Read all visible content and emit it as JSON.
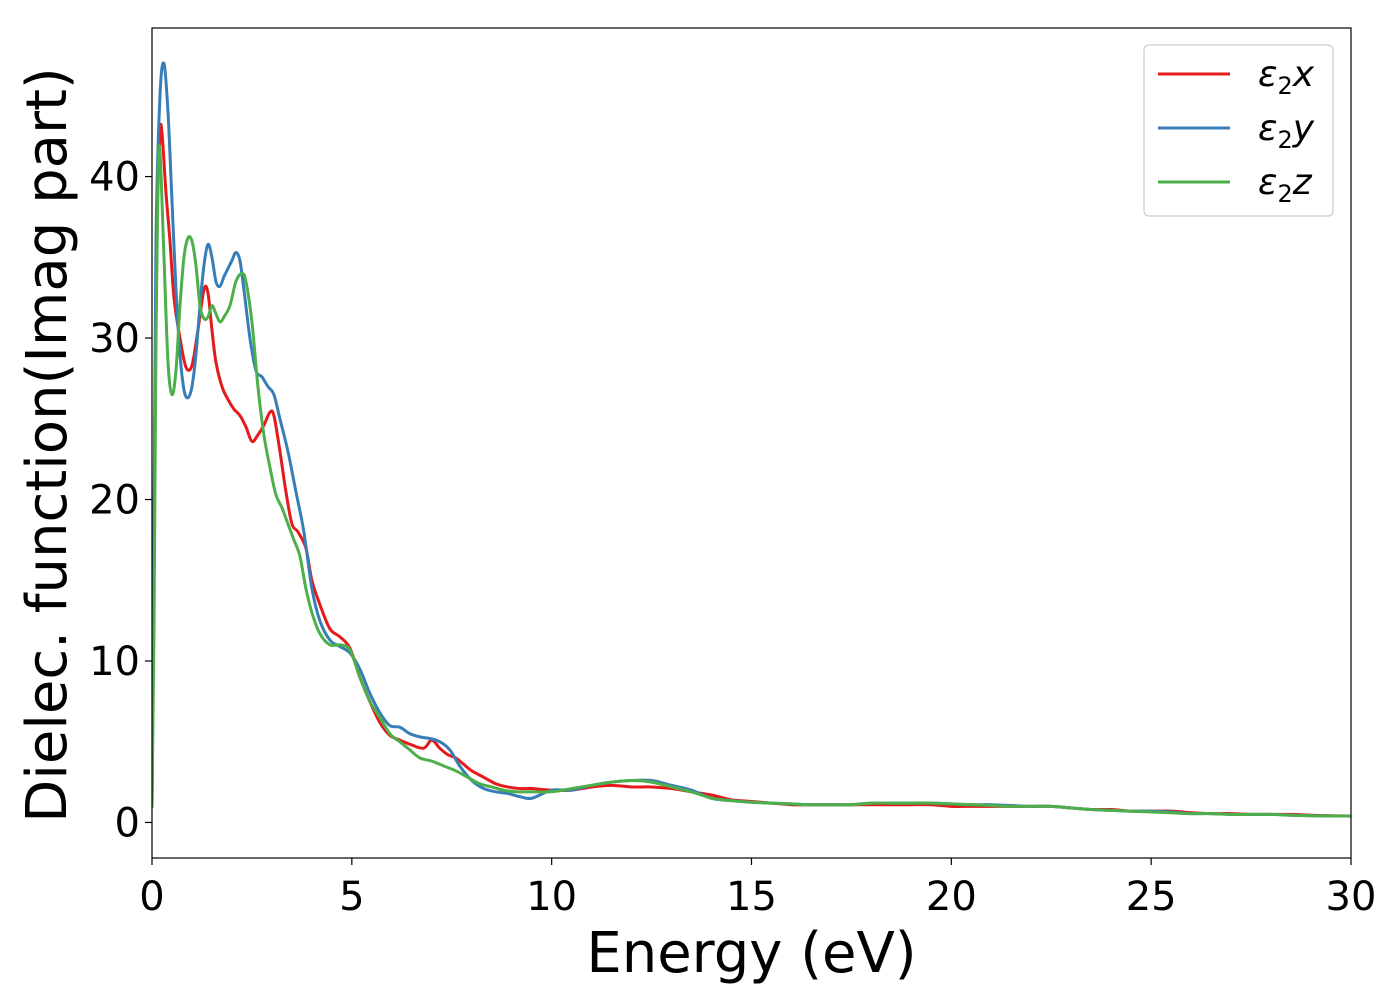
{
  "chart_data": {
    "type": "line",
    "title": "",
    "xlabel": "Energy (eV)",
    "ylabel": "Dielec. function(Imag part)",
    "xlim": [
      0,
      30
    ],
    "ylim": [
      -2.2,
      49.2
    ],
    "xticks": [
      0,
      5,
      10,
      15,
      20,
      25,
      30
    ],
    "yticks": [
      0,
      10,
      20,
      30,
      40
    ],
    "grid": false,
    "legend_position": "top-right",
    "series": [
      {
        "name": "ε2x",
        "symbol": "ε",
        "subscript": "2",
        "component": "x",
        "color": "#e41a1c",
        "x": [
          0,
          0.05,
          0.12,
          0.2,
          0.25,
          0.35,
          0.45,
          0.55,
          0.7,
          0.85,
          1.0,
          1.15,
          1.3,
          1.4,
          1.5,
          1.6,
          1.75,
          1.9,
          2.05,
          2.2,
          2.35,
          2.5,
          2.65,
          2.8,
          2.95,
          3.05,
          3.2,
          3.35,
          3.5,
          3.65,
          3.85,
          4.0,
          4.2,
          4.45,
          4.7,
          4.95,
          5.2,
          5.45,
          5.7,
          5.95,
          6.2,
          6.5,
          6.8,
          7.0,
          7.2,
          7.4,
          7.6,
          7.8,
          8.0,
          8.3,
          8.6,
          8.9,
          9.2,
          9.5,
          10.0,
          10.5,
          11.0,
          11.5,
          12.0,
          12.5,
          13.0,
          13.5,
          14.0,
          14.5,
          15.0,
          15.5,
          16.0,
          16.5,
          17.0,
          17.5,
          18.0,
          18.5,
          19.0,
          19.5,
          20.0,
          20.5,
          21.0,
          21.5,
          22.0,
          22.5,
          23.0,
          23.5,
          24.0,
          24.5,
          25.0,
          25.5,
          26.0,
          26.5,
          27.0,
          27.5,
          28.0,
          28.5,
          29.0,
          29.5,
          30.0
        ],
        "values": [
          1.0,
          18.0,
          36.0,
          42.5,
          42.7,
          39.0,
          36.0,
          32.5,
          30.0,
          28.2,
          28.3,
          30.5,
          33.0,
          32.8,
          30.5,
          28.5,
          27.0,
          26.2,
          25.6,
          25.2,
          24.5,
          23.6,
          24.0,
          24.6,
          25.4,
          25.2,
          23.0,
          20.5,
          18.5,
          18.0,
          17.0,
          15.0,
          13.5,
          12.0,
          11.5,
          10.8,
          9.0,
          7.5,
          6.2,
          5.4,
          5.1,
          4.8,
          4.6,
          5.1,
          4.6,
          4.2,
          4.0,
          3.6,
          3.2,
          2.8,
          2.4,
          2.2,
          2.1,
          2.1,
          2.0,
          2.0,
          2.2,
          2.3,
          2.2,
          2.2,
          2.1,
          1.9,
          1.7,
          1.4,
          1.3,
          1.2,
          1.1,
          1.1,
          1.1,
          1.1,
          1.1,
          1.1,
          1.1,
          1.1,
          1.0,
          1.0,
          1.0,
          1.0,
          1.0,
          1.0,
          0.9,
          0.8,
          0.8,
          0.7,
          0.7,
          0.7,
          0.6,
          0.55,
          0.55,
          0.5,
          0.5,
          0.5,
          0.45,
          0.42,
          0.4
        ]
      },
      {
        "name": "ε2y",
        "symbol": "ε",
        "subscript": "2",
        "component": "y",
        "color": "#377eb8",
        "x": [
          0,
          0.05,
          0.1,
          0.2,
          0.3,
          0.4,
          0.5,
          0.6,
          0.7,
          0.8,
          0.9,
          1.0,
          1.1,
          1.2,
          1.3,
          1.4,
          1.5,
          1.6,
          1.7,
          1.8,
          1.9,
          2.0,
          2.1,
          2.2,
          2.3,
          2.45,
          2.6,
          2.75,
          2.9,
          3.05,
          3.2,
          3.4,
          3.6,
          3.8,
          4.0,
          4.2,
          4.45,
          4.7,
          4.95,
          5.2,
          5.45,
          5.7,
          5.95,
          6.2,
          6.45,
          6.7,
          6.95,
          7.2,
          7.45,
          7.7,
          8.0,
          8.3,
          8.6,
          8.9,
          9.2,
          9.5,
          10.0,
          10.5,
          11.0,
          11.5,
          12.0,
          12.5,
          13.0,
          13.5,
          14.0,
          14.5,
          15.0,
          15.5,
          16.0,
          16.5,
          17.0,
          17.5,
          18.0,
          18.5,
          19.0,
          19.5,
          20.0,
          20.5,
          21.0,
          21.5,
          22.0,
          22.5,
          23.0,
          23.5,
          24.0,
          24.5,
          25.0,
          25.5,
          26.0,
          26.5,
          27.0,
          27.5,
          28.0,
          28.5,
          29.0,
          29.5,
          30.0
        ],
        "values": [
          1.0,
          18.0,
          36.0,
          45.0,
          47.0,
          44.0,
          38.5,
          33.0,
          29.0,
          26.8,
          26.3,
          27.0,
          29.0,
          32.0,
          34.5,
          35.8,
          35.0,
          33.5,
          33.2,
          33.8,
          34.3,
          34.8,
          35.3,
          34.8,
          33.0,
          30.0,
          28.0,
          27.6,
          27.0,
          26.5,
          25.0,
          23.0,
          20.5,
          18.0,
          14.5,
          12.5,
          11.3,
          10.9,
          10.5,
          9.5,
          8.0,
          6.8,
          6.0,
          5.9,
          5.5,
          5.3,
          5.2,
          5.0,
          4.5,
          3.5,
          2.6,
          2.1,
          1.9,
          1.8,
          1.6,
          1.5,
          2.0,
          2.0,
          2.3,
          2.5,
          2.6,
          2.6,
          2.3,
          2.0,
          1.5,
          1.35,
          1.25,
          1.2,
          1.15,
          1.1,
          1.1,
          1.1,
          1.2,
          1.2,
          1.2,
          1.2,
          1.15,
          1.1,
          1.1,
          1.05,
          1.0,
          1.0,
          0.9,
          0.8,
          0.75,
          0.7,
          0.7,
          0.65,
          0.55,
          0.55,
          0.5,
          0.5,
          0.5,
          0.45,
          0.42,
          0.4,
          0.4
        ]
      },
      {
        "name": "ε2z",
        "symbol": "ε",
        "subscript": "2",
        "component": "z",
        "color": "#4daf4a",
        "x": [
          0,
          0.05,
          0.1,
          0.15,
          0.2,
          0.3,
          0.4,
          0.5,
          0.6,
          0.7,
          0.8,
          0.9,
          1.0,
          1.1,
          1.2,
          1.3,
          1.4,
          1.5,
          1.6,
          1.7,
          1.8,
          1.95,
          2.1,
          2.25,
          2.35,
          2.5,
          2.65,
          2.8,
          2.95,
          3.1,
          3.25,
          3.4,
          3.55,
          3.7,
          3.85,
          4.0,
          4.2,
          4.45,
          4.7,
          4.95,
          5.2,
          5.45,
          5.7,
          5.95,
          6.2,
          6.45,
          6.7,
          7.0,
          7.3,
          7.6,
          7.9,
          8.2,
          8.5,
          8.8,
          9.1,
          9.5,
          10.0,
          10.5,
          11.0,
          11.5,
          12.0,
          12.5,
          13.0,
          13.5,
          14.0,
          14.5,
          15.0,
          15.5,
          16.0,
          16.5,
          17.0,
          17.5,
          18.0,
          18.5,
          19.0,
          19.5,
          20.0,
          20.5,
          21.0,
          21.5,
          22.0,
          22.5,
          23.0,
          23.5,
          24.0,
          24.5,
          25.0,
          25.5,
          26.0,
          26.5,
          27.0,
          27.5,
          28.0,
          28.5,
          29.0,
          29.5,
          30.0
        ],
        "values": [
          1.0,
          12.0,
          30.0,
          40.0,
          41.5,
          35.0,
          28.5,
          26.5,
          28.0,
          32.0,
          35.0,
          36.2,
          36.0,
          34.5,
          32.0,
          31.2,
          31.3,
          32.0,
          31.5,
          31.0,
          31.3,
          32.0,
          33.5,
          34.0,
          33.5,
          31.0,
          27.0,
          24.0,
          22.0,
          20.3,
          19.5,
          18.5,
          17.5,
          16.5,
          14.5,
          13.0,
          11.7,
          11.0,
          11.0,
          10.7,
          9.0,
          7.5,
          6.5,
          5.5,
          5.0,
          4.5,
          4.0,
          3.8,
          3.5,
          3.2,
          2.8,
          2.4,
          2.2,
          2.0,
          1.9,
          1.9,
          1.9,
          2.1,
          2.3,
          2.5,
          2.6,
          2.5,
          2.2,
          1.9,
          1.5,
          1.35,
          1.25,
          1.2,
          1.15,
          1.1,
          1.1,
          1.1,
          1.2,
          1.2,
          1.2,
          1.2,
          1.15,
          1.1,
          1.05,
          1.0,
          1.0,
          1.0,
          0.9,
          0.8,
          0.75,
          0.7,
          0.65,
          0.6,
          0.55,
          0.55,
          0.5,
          0.5,
          0.5,
          0.45,
          0.42,
          0.4,
          0.4
        ]
      }
    ]
  }
}
